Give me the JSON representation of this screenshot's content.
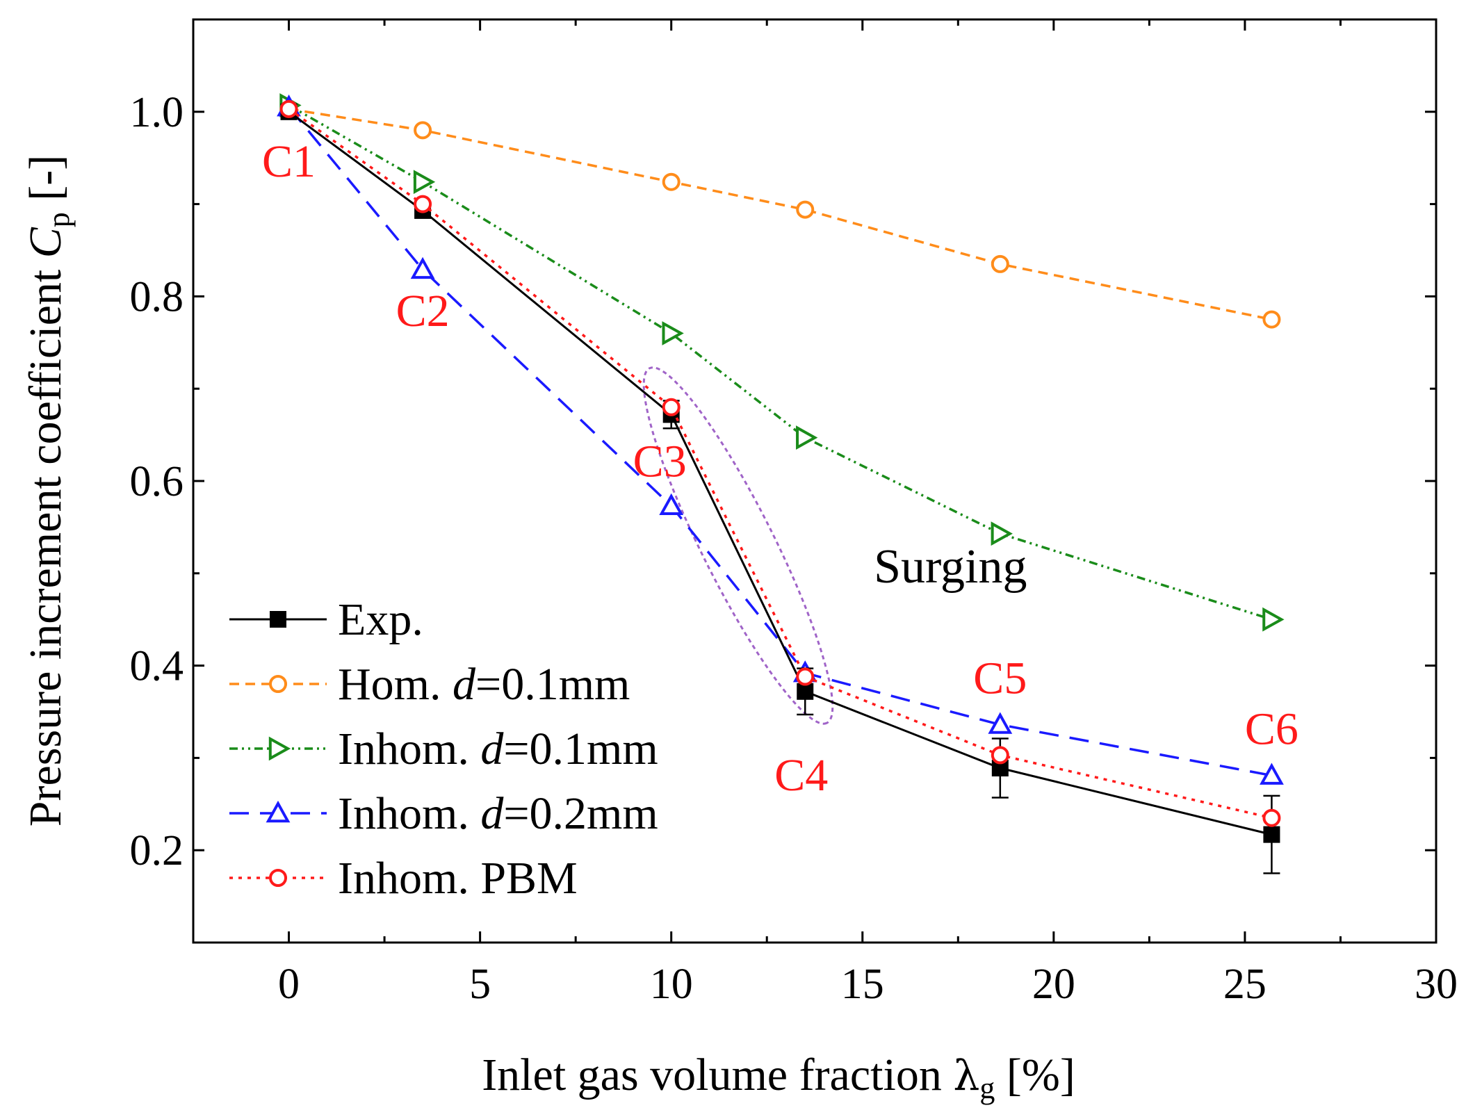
{
  "chart_data": {
    "type": "line",
    "xlabel": {
      "main": "Inlet gas volume fraction ",
      "symbol": "λ",
      "sub": "g",
      "unit": " [%]"
    },
    "ylabel": {
      "main": "Pressure increment coefficient ",
      "symbol": "C",
      "sub": "p",
      "unit": " [-]"
    },
    "xlim": [
      -2.5,
      30
    ],
    "ylim": [
      0.1,
      1.1
    ],
    "xticks": [
      0,
      5,
      10,
      15,
      20,
      25,
      30
    ],
    "xtick_labels": [
      "0",
      "5",
      "10",
      "15",
      "20",
      "25",
      "30"
    ],
    "yticks": [
      0.2,
      0.4,
      0.6,
      0.8,
      1.0
    ],
    "ytick_labels": [
      "0.2",
      "0.4",
      "0.6",
      "0.8",
      "1.0"
    ],
    "grid": false,
    "legend_position": "bottom-left",
    "x": [
      0,
      3.5,
      10,
      13.5,
      18.6,
      25.7
    ],
    "series": [
      {
        "name": "Exp.",
        "legend_parts": [
          "Exp."
        ],
        "values": [
          1.0,
          0.893,
          0.672,
          0.372,
          0.289,
          0.217
        ],
        "error": [
          0,
          0,
          0.015,
          0.025,
          0.032,
          0.042
        ],
        "color": "#000000",
        "marker": "square",
        "line": "solid"
      },
      {
        "name": "Hom. d=0.1mm",
        "legend_parts": [
          "Hom.   ",
          "d",
          "=0.1mm"
        ],
        "values": [
          1.003,
          0.98,
          0.924,
          0.894,
          0.835,
          0.775
        ],
        "color": "#ff8c1a",
        "marker": "circle",
        "line": "dashed"
      },
      {
        "name": "Inhom. d=0.1mm",
        "legend_parts": [
          "Inhom. ",
          "d",
          "=0.1mm"
        ],
        "values": [
          1.007,
          0.924,
          0.76,
          0.647,
          0.543,
          0.45
        ],
        "color": "#1a8c1a",
        "marker": "triangle-right",
        "line": "dashdotdot"
      },
      {
        "name": "Inhom. d=0.2mm",
        "legend_parts": [
          "Inhom. ",
          "d",
          "=0.2mm"
        ],
        "values": [
          1.005,
          0.829,
          0.573,
          0.392,
          0.336,
          0.281
        ],
        "color": "#1a1aff",
        "marker": "triangle-up",
        "line": "longdash"
      },
      {
        "name": "Inhom. PBM",
        "legend_parts": [
          "Inhom. PBM"
        ],
        "values": [
          1.003,
          0.9,
          0.68,
          0.388,
          0.303,
          0.235
        ],
        "color": "#ff1a1a",
        "marker": "circle",
        "line": "dotted"
      }
    ],
    "case_labels": [
      {
        "text": "C1",
        "x": 0,
        "y": 0.93
      },
      {
        "text": "C2",
        "x": 3.5,
        "y": 0.768
      },
      {
        "text": "C3",
        "x": 9.7,
        "y": 0.605
      },
      {
        "text": "C4",
        "x": 13.4,
        "y": 0.265
      },
      {
        "text": "C5",
        "x": 18.6,
        "y": 0.37
      },
      {
        "text": "C6",
        "x": 25.7,
        "y": 0.315
      }
    ],
    "case_label_color": "#ff1a1a",
    "annotation": {
      "text": "Surging",
      "x": 17.3,
      "y": 0.49
    },
    "surge_ellipse_color": "#a064c8"
  }
}
